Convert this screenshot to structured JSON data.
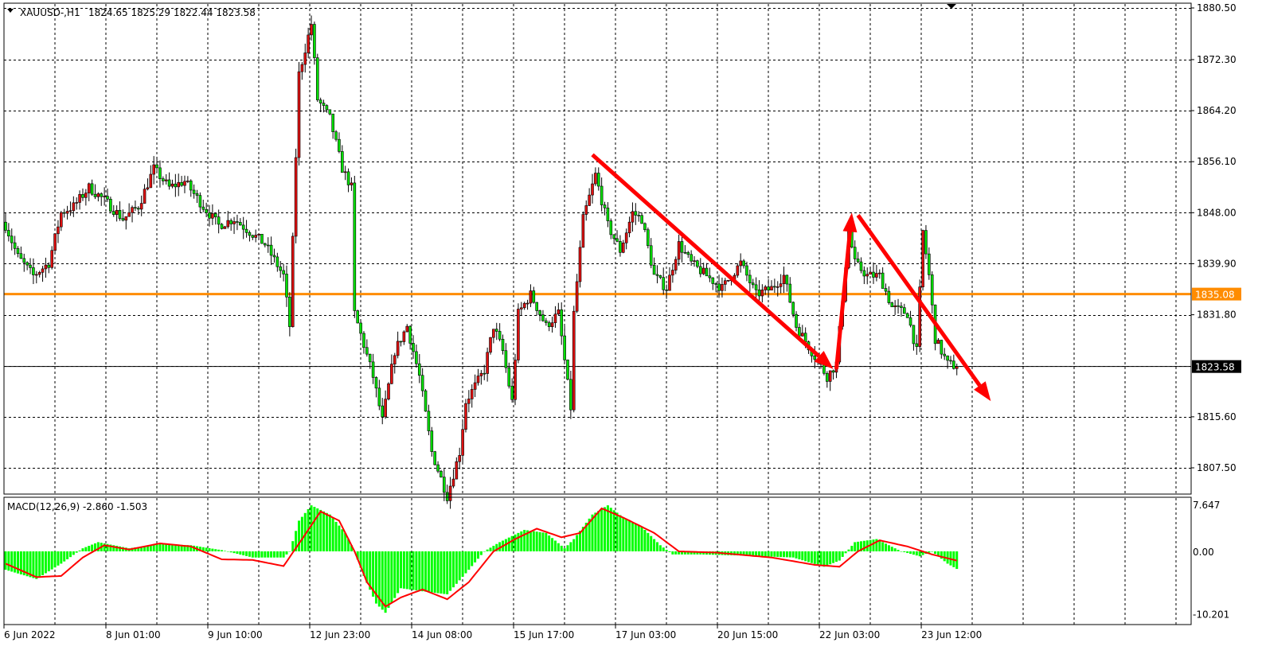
{
  "header": {
    "symbol": "XAUUSD-,H1",
    "ohlc": "1824.65 1825.29 1822.44 1823.58"
  },
  "indicator": {
    "label": "MACD(12,26,9) -2.860 -1.503"
  },
  "colors": {
    "bull": "#e01010",
    "bear": "#00e000",
    "hline": "#ff8c00",
    "arrow": "#ff0000",
    "macd_hist": "#00ff00",
    "macd_signal": "#ff0000",
    "grid": "#000000"
  },
  "chart_data": {
    "type": "candlestick",
    "timeframe": "H1",
    "price_axis": {
      "range": [
        1802.7,
        1880.5
      ],
      "ticks": [
        "1880.50",
        "1872.30",
        "1864.20",
        "1856.10",
        "1848.00",
        "1839.90",
        "1831.80",
        "1815.60",
        "1807.50"
      ],
      "grid_levels": [
        1880.5,
        1872.3,
        1864.2,
        1856.1,
        1848.0,
        1839.9,
        1831.8,
        1823.7,
        1815.6,
        1807.5
      ]
    },
    "time_axis": {
      "ticks": [
        {
          "bar": 0,
          "label": "6 Jun 2022"
        },
        {
          "bar": 33,
          "label": "8 Jun 01:00"
        },
        {
          "bar": 66,
          "label": "9 Jun 10:00"
        },
        {
          "bar": 99,
          "label": "12 Jun 23:00"
        },
        {
          "bar": 132,
          "label": "14 Jun 08:00"
        },
        {
          "bar": 165,
          "label": "15 Jun 17:00"
        },
        {
          "bar": 198,
          "label": "17 Jun 03:00"
        },
        {
          "bar": 231,
          "label": "20 Jun 15:00"
        },
        {
          "bar": 264,
          "label": "22 Jun 03:00"
        },
        {
          "bar": 297,
          "label": "23 Jun 12:00"
        }
      ]
    },
    "bars": 309,
    "close_path": [
      [
        0,
        1846
      ],
      [
        4,
        1841
      ],
      [
        9,
        1838
      ],
      [
        14,
        1840
      ],
      [
        18,
        1848
      ],
      [
        22,
        1849
      ],
      [
        27,
        1852
      ],
      [
        32,
        1850
      ],
      [
        38,
        1847
      ],
      [
        43,
        1849
      ],
      [
        48,
        1855
      ],
      [
        53,
        1852
      ],
      [
        58,
        1853
      ],
      [
        64,
        1849
      ],
      [
        69,
        1846
      ],
      [
        74,
        1847
      ],
      [
        79,
        1845
      ],
      [
        84,
        1843
      ],
      [
        90,
        1838
      ],
      [
        92,
        1830
      ],
      [
        94,
        1857
      ],
      [
        95,
        1870
      ],
      [
        99,
        1878
      ],
      [
        101,
        1866
      ],
      [
        105,
        1863
      ],
      [
        109,
        1855
      ],
      [
        112,
        1852
      ],
      [
        113,
        1832
      ],
      [
        116,
        1827
      ],
      [
        119,
        1822
      ],
      [
        122,
        1815
      ],
      [
        126,
        1826
      ],
      [
        130,
        1830
      ],
      [
        134,
        1822
      ],
      [
        138,
        1810
      ],
      [
        143,
        1803
      ],
      [
        147,
        1810
      ],
      [
        149,
        1818
      ],
      [
        155,
        1823
      ],
      [
        158,
        1830
      ],
      [
        161,
        1826
      ],
      [
        164,
        1818
      ],
      [
        166,
        1832
      ],
      [
        170,
        1835
      ],
      [
        175,
        1830
      ],
      [
        179,
        1832
      ],
      [
        183,
        1817
      ],
      [
        184,
        1832
      ],
      [
        187,
        1847
      ],
      [
        191,
        1854
      ],
      [
        195,
        1846
      ],
      [
        199,
        1842
      ],
      [
        203,
        1848
      ],
      [
        206,
        1847
      ],
      [
        210,
        1838
      ],
      [
        214,
        1836
      ],
      [
        218,
        1843
      ],
      [
        222,
        1840
      ],
      [
        227,
        1838
      ],
      [
        232,
        1836
      ],
      [
        238,
        1840
      ],
      [
        243,
        1835
      ],
      [
        248,
        1836
      ],
      [
        252,
        1838
      ],
      [
        256,
        1830
      ],
      [
        261,
        1826
      ],
      [
        266,
        1822
      ],
      [
        269,
        1824
      ],
      [
        273,
        1845
      ],
      [
        275,
        1840
      ],
      [
        279,
        1838
      ],
      [
        283,
        1838
      ],
      [
        287,
        1833
      ],
      [
        292,
        1832
      ],
      [
        295,
        1826
      ],
      [
        297,
        1845
      ],
      [
        299,
        1838
      ],
      [
        301,
        1828
      ],
      [
        305,
        1824
      ],
      [
        308,
        1823.58
      ]
    ],
    "last_close": {
      "value": 1823.58,
      "label": "1823.58"
    },
    "horizontal_line": {
      "value": 1835.08,
      "label": "1835.08"
    },
    "annotations": [
      {
        "type": "arrow",
        "from": [
          190,
          1857.2
        ],
        "to": [
          268,
          1823.2
        ]
      },
      {
        "type": "arrow",
        "from": [
          269,
          1823.2
        ],
        "to": [
          274,
          1848.0
        ]
      },
      {
        "type": "arrow",
        "from": [
          276,
          1847.6
        ],
        "to": [
          319,
          1818.1
        ]
      }
    ],
    "macd": {
      "params": "12,26,9",
      "axis": {
        "range": [
          -10.201,
          7.647
        ],
        "ticks": [
          "7.647",
          "0.00",
          "-10.201"
        ]
      },
      "main_path": [
        [
          0,
          -3
        ],
        [
          10,
          -4.5
        ],
        [
          18,
          -2
        ],
        [
          25,
          0.5
        ],
        [
          30,
          1.5
        ],
        [
          40,
          0.5
        ],
        [
          50,
          1.2
        ],
        [
          60,
          1
        ],
        [
          70,
          0.2
        ],
        [
          80,
          -1
        ],
        [
          90,
          -1
        ],
        [
          92,
          0
        ],
        [
          95,
          5
        ],
        [
          99,
          7.5
        ],
        [
          105,
          6
        ],
        [
          110,
          3
        ],
        [
          113,
          0
        ],
        [
          116,
          -4
        ],
        [
          120,
          -8.5
        ],
        [
          123,
          -10
        ],
        [
          128,
          -6
        ],
        [
          135,
          -6.5
        ],
        [
          143,
          -7
        ],
        [
          150,
          -3
        ],
        [
          155,
          0
        ],
        [
          160,
          1.5
        ],
        [
          168,
          3.5
        ],
        [
          175,
          3
        ],
        [
          181,
          0.5
        ],
        [
          184,
          2
        ],
        [
          190,
          6
        ],
        [
          195,
          7.5
        ],
        [
          200,
          5.5
        ],
        [
          206,
          4
        ],
        [
          212,
          1
        ],
        [
          216,
          -0.5
        ],
        [
          225,
          -0.5
        ],
        [
          240,
          -0.7
        ],
        [
          255,
          -1
        ],
        [
          265,
          -2.5
        ],
        [
          270,
          -1.5
        ],
        [
          275,
          1.5
        ],
        [
          282,
          2
        ],
        [
          290,
          0
        ],
        [
          296,
          -0.8
        ],
        [
          300,
          0
        ],
        [
          305,
          -2
        ],
        [
          308,
          -2.86
        ]
      ],
      "signal_path": [
        [
          0,
          -2
        ],
        [
          10,
          -4.2
        ],
        [
          18,
          -4
        ],
        [
          25,
          -1
        ],
        [
          32,
          1
        ],
        [
          40,
          0.3
        ],
        [
          50,
          1.3
        ],
        [
          60,
          0.8
        ],
        [
          70,
          -1.3
        ],
        [
          80,
          -1.4
        ],
        [
          90,
          -2.4
        ],
        [
          96,
          2
        ],
        [
          102,
          6.5
        ],
        [
          108,
          5
        ],
        [
          113,
          0
        ],
        [
          117,
          -5
        ],
        [
          123,
          -9
        ],
        [
          128,
          -7.5
        ],
        [
          135,
          -6.2
        ],
        [
          143,
          -7.8
        ],
        [
          150,
          -5
        ],
        [
          158,
          0
        ],
        [
          165,
          2
        ],
        [
          172,
          3.7
        ],
        [
          180,
          2.3
        ],
        [
          186,
          3
        ],
        [
          193,
          7
        ],
        [
          200,
          5.5
        ],
        [
          210,
          3
        ],
        [
          218,
          0
        ],
        [
          230,
          -0.2
        ],
        [
          248,
          -1
        ],
        [
          262,
          -2.2
        ],
        [
          270,
          -2.5
        ],
        [
          276,
          0
        ],
        [
          283,
          1.8
        ],
        [
          292,
          0.8
        ],
        [
          300,
          -0.5
        ],
        [
          308,
          -1.503
        ]
      ]
    }
  }
}
